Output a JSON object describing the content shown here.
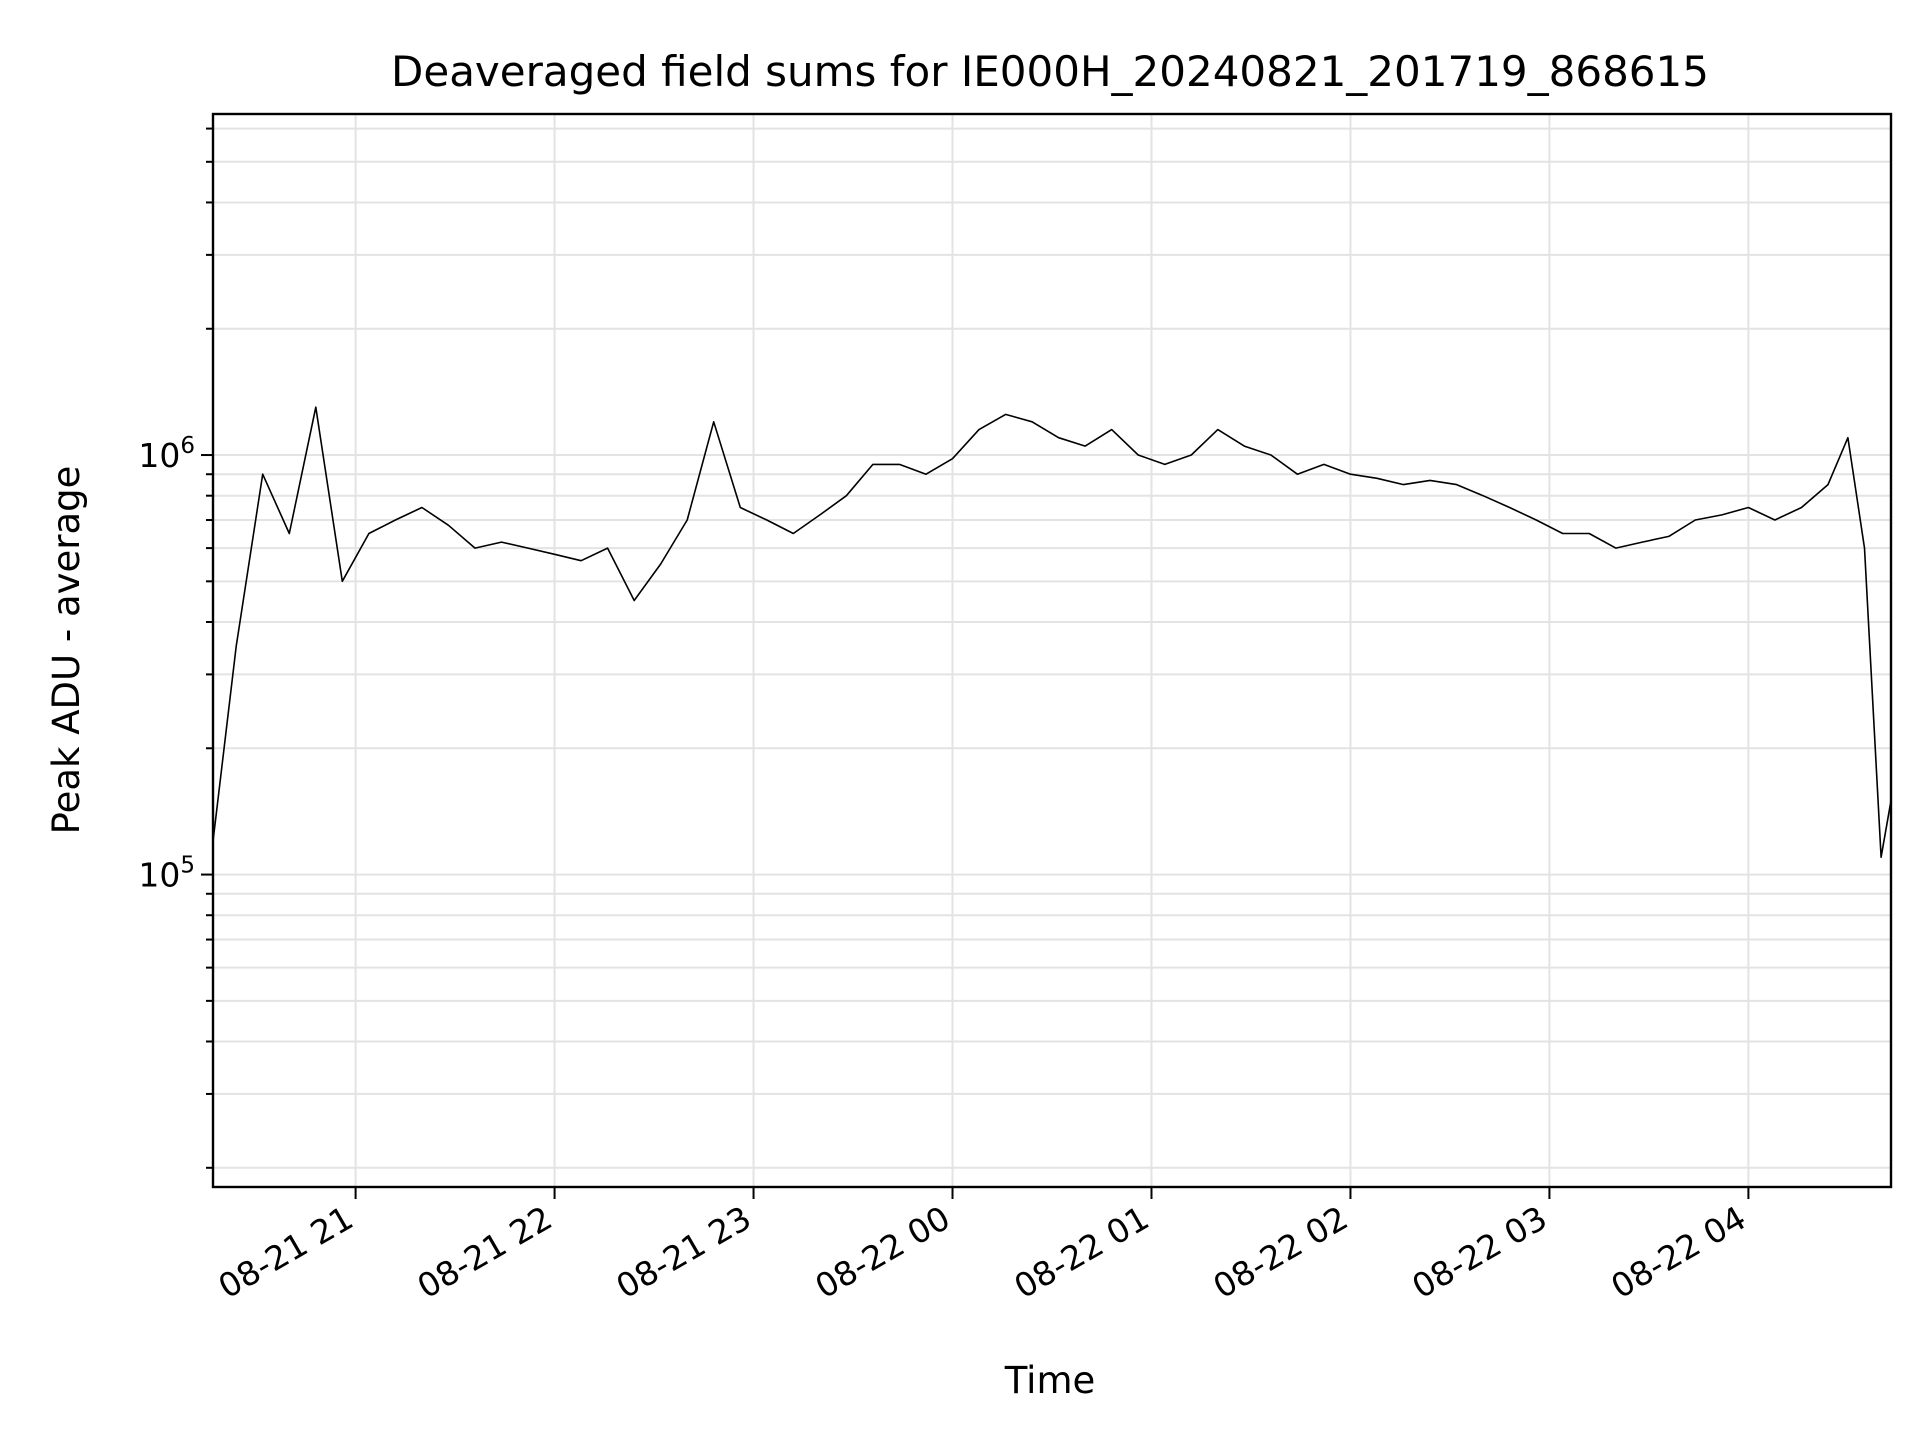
{
  "chart_data": {
    "type": "line",
    "title": "Deaveraged field sums for IE000H_20240821_201719_868615",
    "xlabel": "Time",
    "ylabel": "Peak ADU - average",
    "yscale": "log",
    "grid": true,
    "x_tick_labels": [
      "08-21 21",
      "08-21 22",
      "08-21 23",
      "08-22 00",
      "08-22 01",
      "08-22 02",
      "08-22 03",
      "08-22 04"
    ],
    "x_ticks": [
      "2024-08-21 21:00",
      "2024-08-21 22:00",
      "2024-08-21 23:00",
      "2024-08-22 00:00",
      "2024-08-22 01:00",
      "2024-08-22 02:00",
      "2024-08-22 03:00",
      "2024-08-22 04:00"
    ],
    "xlim": [
      "2024-08-21 20:17",
      "2024-08-22 04:43"
    ],
    "ylim": [
      18000,
      6500000
    ],
    "y_ticks": [
      {
        "value": 100000,
        "base": "10",
        "exp": "5"
      },
      {
        "value": 1000000,
        "base": "10",
        "exp": "6"
      }
    ],
    "line_color": "#000000",
    "series": [
      {
        "x": [
          "2024-08-21 20:17",
          "2024-08-21 20:24",
          "2024-08-21 20:32",
          "2024-08-21 20:40",
          "2024-08-21 20:48",
          "2024-08-21 20:56",
          "2024-08-21 21:04",
          "2024-08-21 21:12",
          "2024-08-21 21:20",
          "2024-08-21 21:28",
          "2024-08-21 21:36",
          "2024-08-21 21:44",
          "2024-08-21 21:52",
          "2024-08-21 22:00",
          "2024-08-21 22:08",
          "2024-08-21 22:16",
          "2024-08-21 22:24",
          "2024-08-21 22:32",
          "2024-08-21 22:40",
          "2024-08-21 22:48",
          "2024-08-21 22:56",
          "2024-08-21 23:04",
          "2024-08-21 23:12",
          "2024-08-21 23:20",
          "2024-08-21 23:28",
          "2024-08-21 23:36",
          "2024-08-21 23:44",
          "2024-08-21 23:52",
          "2024-08-22 00:00",
          "2024-08-22 00:08",
          "2024-08-22 00:16",
          "2024-08-22 00:24",
          "2024-08-22 00:32",
          "2024-08-22 00:40",
          "2024-08-22 00:48",
          "2024-08-22 00:56",
          "2024-08-22 01:04",
          "2024-08-22 01:12",
          "2024-08-22 01:20",
          "2024-08-22 01:28",
          "2024-08-22 01:36",
          "2024-08-22 01:44",
          "2024-08-22 01:52",
          "2024-08-22 02:00",
          "2024-08-22 02:08",
          "2024-08-22 02:16",
          "2024-08-22 02:24",
          "2024-08-22 02:32",
          "2024-08-22 02:40",
          "2024-08-22 02:48",
          "2024-08-22 02:56",
          "2024-08-22 03:04",
          "2024-08-22 03:12",
          "2024-08-22 03:20",
          "2024-08-22 03:28",
          "2024-08-22 03:36",
          "2024-08-22 03:44",
          "2024-08-22 03:52",
          "2024-08-22 04:00",
          "2024-08-22 04:08",
          "2024-08-22 04:16",
          "2024-08-22 04:24",
          "2024-08-22 04:30",
          "2024-08-22 04:35",
          "2024-08-22 04:40",
          "2024-08-22 04:43"
        ],
        "values": [
          120000,
          350000,
          900000,
          650000,
          1300000,
          500000,
          650000,
          700000,
          750000,
          680000,
          600000,
          620000,
          600000,
          580000,
          560000,
          600000,
          450000,
          550000,
          700000,
          1200000,
          750000,
          700000,
          650000,
          720000,
          800000,
          950000,
          950000,
          900000,
          980000,
          1150000,
          1250000,
          1200000,
          1100000,
          1050000,
          1150000,
          1000000,
          950000,
          1000000,
          1150000,
          1050000,
          1000000,
          900000,
          950000,
          900000,
          880000,
          850000,
          870000,
          850000,
          800000,
          750000,
          700000,
          650000,
          650000,
          600000,
          620000,
          640000,
          700000,
          720000,
          750000,
          700000,
          750000,
          850000,
          1100000,
          600000,
          110000,
          150000
        ]
      }
    ]
  }
}
